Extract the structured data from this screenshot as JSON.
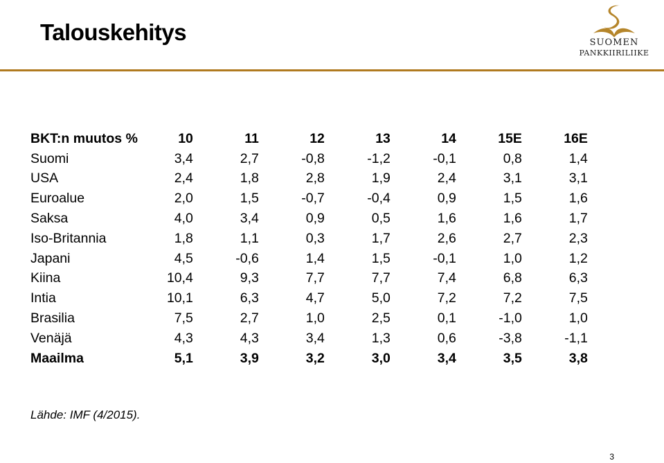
{
  "title": "Talouskehitys",
  "logo": {
    "line1": "SUOMEN",
    "line2": "PANKKIIRILIIKE",
    "accent_color": "#b5852a"
  },
  "divider_color": "#b07a1f",
  "table": {
    "columns": [
      "BKT:n muutos %",
      "10",
      "11",
      "12",
      "13",
      "14",
      "15E",
      "16E"
    ],
    "rows": [
      {
        "label": "Suomi",
        "values": [
          "3,4",
          "2,7",
          "-0,8",
          "-1,2",
          "-0,1",
          "0,8",
          "1,4"
        ]
      },
      {
        "label": "USA",
        "values": [
          "2,4",
          "1,8",
          "2,8",
          "1,9",
          "2,4",
          "3,1",
          "3,1"
        ]
      },
      {
        "label": "Euroalue",
        "values": [
          "2,0",
          "1,5",
          "-0,7",
          "-0,4",
          "0,9",
          "1,5",
          "1,6"
        ]
      },
      {
        "label": "Saksa",
        "values": [
          "4,0",
          "3,4",
          "0,9",
          "0,5",
          "1,6",
          "1,6",
          "1,7"
        ]
      },
      {
        "label": "Iso-Britannia",
        "values": [
          "1,8",
          "1,1",
          "0,3",
          "1,7",
          "2,6",
          "2,7",
          "2,3"
        ]
      },
      {
        "label": "Japani",
        "values": [
          "4,5",
          "-0,6",
          "1,4",
          "1,5",
          "-0,1",
          "1,0",
          "1,2"
        ]
      },
      {
        "label": "Kiina",
        "values": [
          "10,4",
          "9,3",
          "7,7",
          "7,7",
          "7,4",
          "6,8",
          "6,3"
        ]
      },
      {
        "label": "Intia",
        "values": [
          "10,1",
          "6,3",
          "4,7",
          "5,0",
          "7,2",
          "7,2",
          "7,5"
        ]
      },
      {
        "label": "Brasilia",
        "values": [
          "7,5",
          "2,7",
          "1,0",
          "2,5",
          "0,1",
          "-1,0",
          "1,0"
        ]
      },
      {
        "label": "Venäjä",
        "values": [
          "4,3",
          "4,3",
          "3,4",
          "1,3",
          "0,6",
          "-3,8",
          "-1,1"
        ]
      },
      {
        "label": "Maailma",
        "values": [
          "5,1",
          "3,9",
          "3,2",
          "3,0",
          "3,4",
          "3,5",
          "3,8"
        ]
      }
    ]
  },
  "source": "Lähde:  IMF (4/2015).",
  "page_number": "3"
}
